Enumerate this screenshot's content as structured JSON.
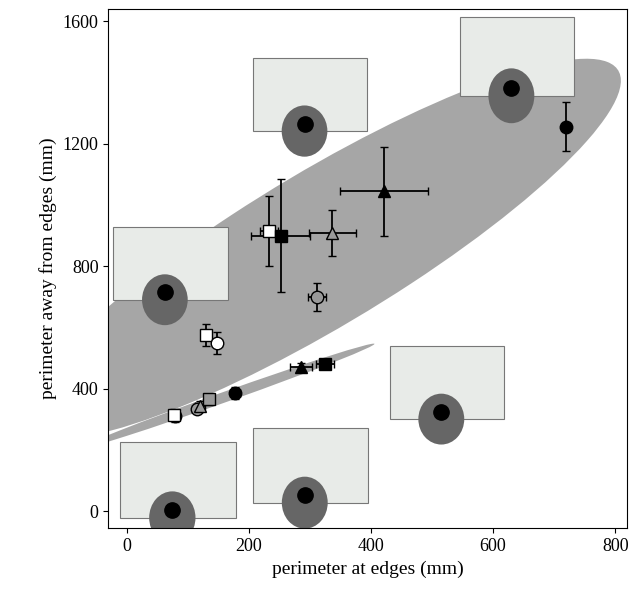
{
  "chart_data": {
    "type": "scatter",
    "x_label": "perimeter at edges (mm)",
    "y_label": "perimeter away from edges (mm)",
    "xlim": [
      -30,
      820
    ],
    "ylim": [
      -55,
      1640
    ],
    "xticks": [
      0,
      200,
      400,
      600,
      800
    ],
    "yticks": [
      0,
      400,
      800,
      1200,
      1600
    ],
    "grid": false,
    "groups": [
      {
        "points": [
          {
            "x": 233,
            "y": 915,
            "xerr": 15,
            "yerr": 115,
            "marker": "square",
            "color": "white"
          },
          {
            "x": 252,
            "y": 900,
            "xerr": 48,
            "yerr": 185,
            "marker": "square",
            "color": "black"
          },
          {
            "x": 337,
            "y": 910,
            "xerr": 38,
            "yerr": 75,
            "marker": "triangle",
            "color": "#999999"
          },
          {
            "x": 422,
            "y": 1045,
            "xerr": 72,
            "yerr": 145,
            "marker": "triangle",
            "color": "black"
          },
          {
            "x": 312,
            "y": 700,
            "xerr": 15,
            "yerr": 45,
            "marker": "circle",
            "color": "#999999"
          },
          {
            "x": 720,
            "y": 1255,
            "xerr": 0,
            "yerr": 80,
            "marker": "circle",
            "color": "black"
          },
          {
            "x": 130,
            "y": 575,
            "xerr": 8,
            "yerr": 35,
            "marker": "square",
            "color": "white"
          },
          {
            "x": 148,
            "y": 550,
            "xerr": 8,
            "yerr": 35,
            "marker": "circle",
            "color": "white"
          }
        ]
      },
      {
        "points": [
          {
            "x": 80,
            "y": 310,
            "xerr": 8,
            "yerr": 20,
            "marker": "circle",
            "color": "white"
          },
          {
            "x": 78,
            "y": 315,
            "xerr": 8,
            "yerr": 20,
            "marker": "square",
            "color": "white"
          },
          {
            "x": 115,
            "y": 335,
            "xerr": 8,
            "yerr": 15,
            "marker": "circle",
            "color": "#999999"
          },
          {
            "x": 120,
            "y": 345,
            "xerr": 8,
            "yerr": 15,
            "marker": "triangle",
            "color": "#999999"
          },
          {
            "x": 135,
            "y": 365,
            "xerr": 8,
            "yerr": 18,
            "marker": "square",
            "color": "#999999"
          },
          {
            "x": 177,
            "y": 385,
            "xerr": 8,
            "yerr": 20,
            "marker": "circle",
            "color": "black"
          },
          {
            "x": 285,
            "y": 470,
            "xerr": 18,
            "yerr": 15,
            "marker": "triangle",
            "color": "black"
          },
          {
            "x": 325,
            "y": 480,
            "xerr": 15,
            "yerr": 10,
            "marker": "square",
            "color": "black"
          }
        ]
      }
    ]
  }
}
